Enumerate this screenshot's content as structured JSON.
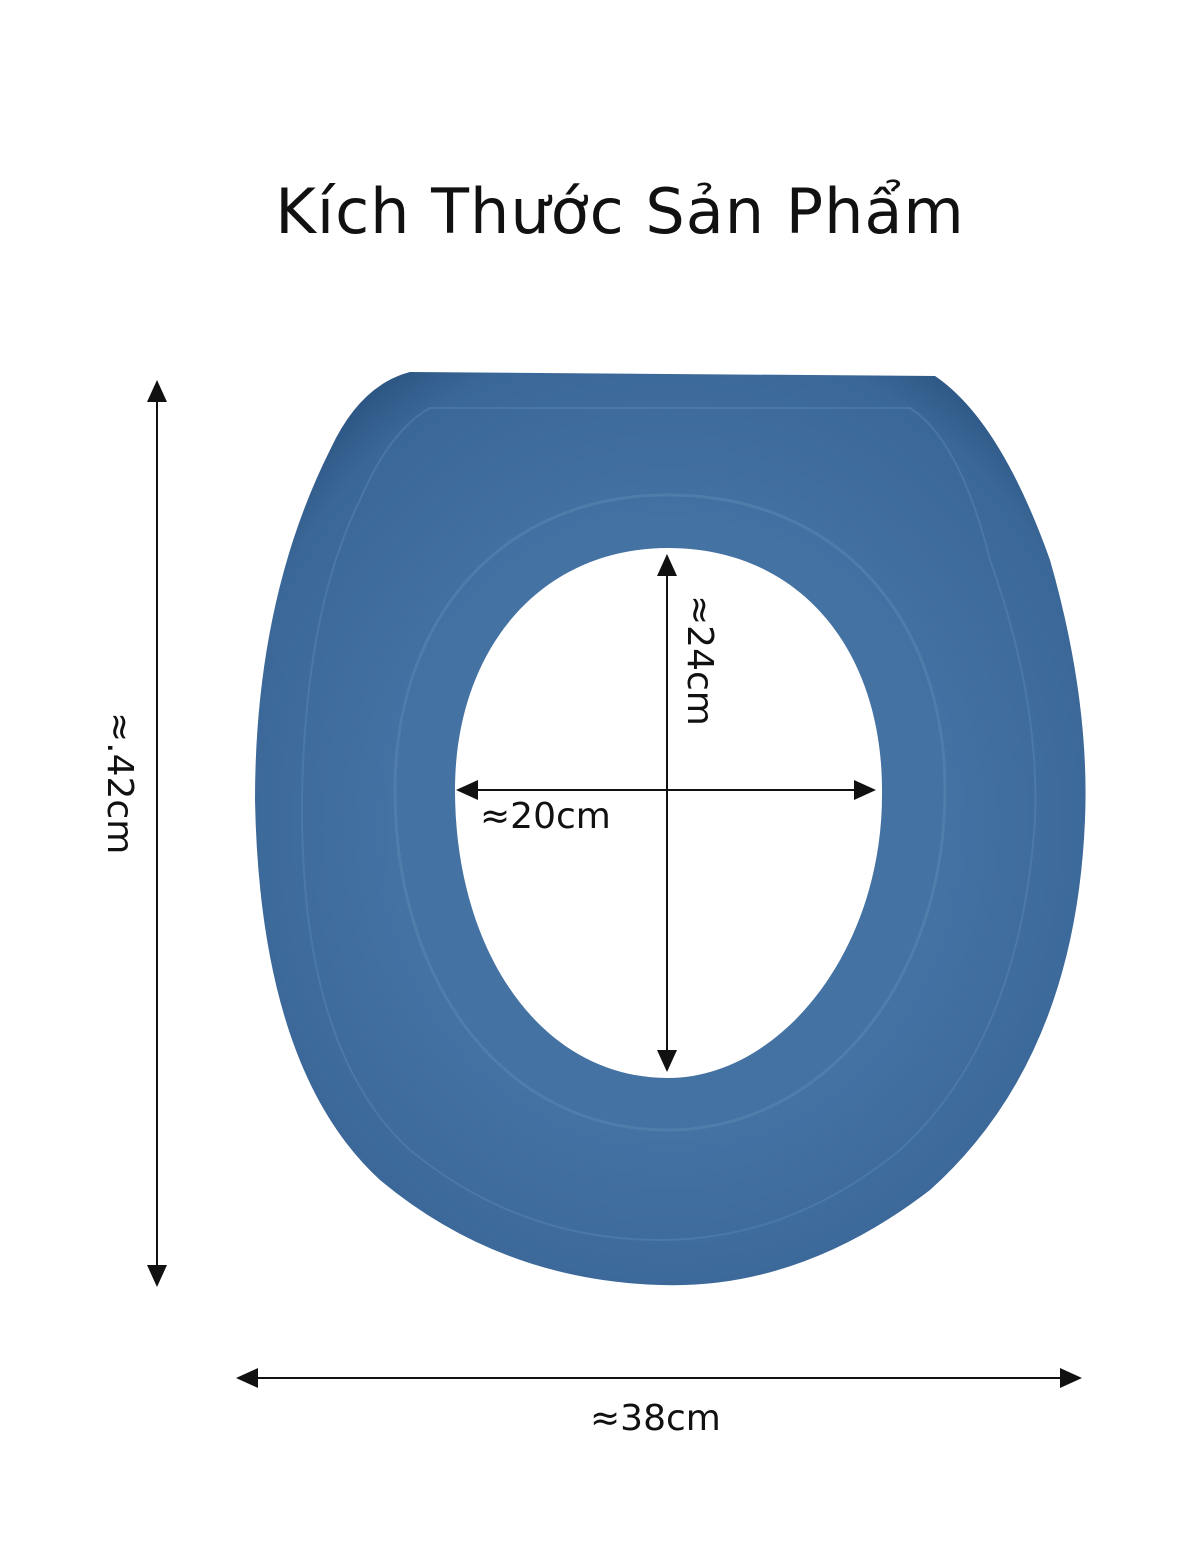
{
  "title": "Kích Thước Sản Phẩm",
  "product": {
    "color": "#3d6a9a"
  },
  "dimensions": {
    "height": "≈.42cm",
    "width": "≈38cm",
    "inner_height": "≈24cm",
    "inner_width": "≈20cm"
  }
}
